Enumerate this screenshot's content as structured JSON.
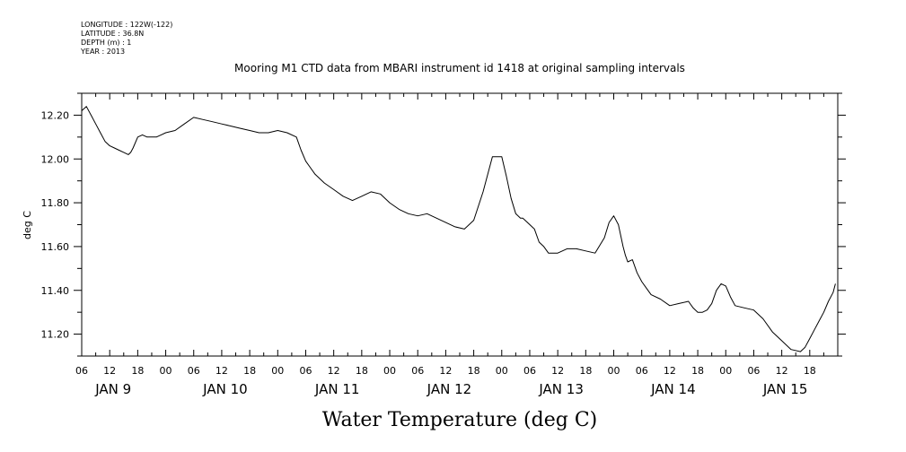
{
  "header": {
    "lines": [
      "LONGITUDE : 122W(-122)",
      "LATITUDE : 36.8N",
      "DEPTH (m) : 1",
      "YEAR : 2013"
    ]
  },
  "chart_data": {
    "type": "line",
    "title": "Mooring M1 CTD data from MBARI instrument id 1418 at original sampling intervals",
    "xlabel": "Water Temperature (deg C)",
    "ylabel": "deg C",
    "xlim_hours": [
      0,
      162
    ],
    "ylim": [
      11.1,
      12.3
    ],
    "y_ticks": [
      11.2,
      11.4,
      11.6,
      11.8,
      12.0,
      12.2
    ],
    "y_tick_labels": [
      "11.20",
      "11.40",
      "11.60",
      "11.80",
      "12.00",
      "12.20"
    ],
    "hour_labels": [
      "06",
      "12",
      "18",
      "00",
      "06",
      "12",
      "18",
      "00",
      "06",
      "12",
      "18",
      "00",
      "06",
      "12",
      "18",
      "00",
      "06",
      "12",
      "18",
      "00",
      "06",
      "12",
      "18",
      "00",
      "06",
      "12",
      "18"
    ],
    "day_labels": [
      "JAN  9",
      "JAN 10",
      "JAN 11",
      "JAN 12",
      "JAN 13",
      "JAN 14",
      "JAN 15"
    ],
    "grid": false,
    "series": [
      {
        "x": [
          0,
          1,
          2,
          3,
          4,
          5,
          6,
          7,
          8,
          9,
          10,
          10.5,
          11,
          12,
          13,
          14,
          15,
          16,
          17,
          18,
          20,
          22,
          24,
          26,
          28,
          30,
          32,
          34,
          36,
          38,
          40,
          42,
          44,
          46,
          47,
          48,
          49,
          50,
          52,
          54,
          56,
          58,
          60,
          62,
          64,
          66,
          68,
          70,
          72,
          74,
          76,
          78,
          80,
          82,
          84,
          86,
          88,
          90,
          91,
          92,
          93,
          94,
          94.5,
          95,
          96,
          97,
          98,
          99,
          100,
          102,
          104,
          106,
          108,
          110,
          112,
          113,
          114,
          115,
          116,
          116.5,
          117,
          118,
          119,
          120,
          121,
          122,
          124,
          126,
          128,
          130,
          131,
          132,
          133,
          134,
          135,
          136,
          137,
          138,
          139,
          140,
          142,
          144,
          146,
          148,
          150,
          152,
          154,
          155,
          156,
          157,
          158,
          159,
          160,
          161,
          161.5
        ],
        "y": [
          12.22,
          12.24,
          12.2,
          12.16,
          12.12,
          12.08,
          12.06,
          12.05,
          12.04,
          12.03,
          12.02,
          12.03,
          12.05,
          12.1,
          12.11,
          12.1,
          12.1,
          12.1,
          12.11,
          12.12,
          12.13,
          12.16,
          12.19,
          12.18,
          12.17,
          12.16,
          12.15,
          12.14,
          12.13,
          12.12,
          12.12,
          12.13,
          12.12,
          12.1,
          12.04,
          11.99,
          11.96,
          11.93,
          11.89,
          11.86,
          11.83,
          11.81,
          11.83,
          11.85,
          11.84,
          11.8,
          11.77,
          11.75,
          11.74,
          11.75,
          11.73,
          11.71,
          11.69,
          11.68,
          11.72,
          11.85,
          12.01,
          12.01,
          11.92,
          11.82,
          11.75,
          11.73,
          11.73,
          11.72,
          11.7,
          11.68,
          11.62,
          11.6,
          11.57,
          11.57,
          11.59,
          11.59,
          11.58,
          11.57,
          11.64,
          11.71,
          11.74,
          11.7,
          11.6,
          11.56,
          11.53,
          11.54,
          11.48,
          11.44,
          11.41,
          11.38,
          11.36,
          11.33,
          11.34,
          11.35,
          11.32,
          11.3,
          11.3,
          11.31,
          11.34,
          11.4,
          11.43,
          11.42,
          11.37,
          11.33,
          11.32,
          11.31,
          11.27,
          11.21,
          11.17,
          11.13,
          11.12,
          11.14,
          11.18,
          11.22,
          11.26,
          11.3,
          11.35,
          11.39,
          11.43
        ]
      }
    ]
  }
}
